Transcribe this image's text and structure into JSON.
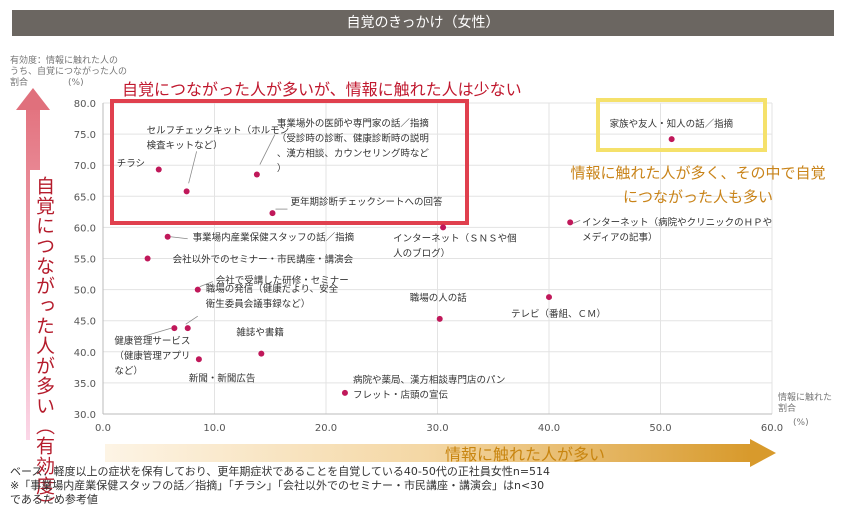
{
  "header": {
    "title": "自覚のきっかけ（女性）"
  },
  "y_caption": "有効度：情報に触れた人の\nうち、自覚につながった人の\n割合",
  "y_unit": "(%)",
  "x_caption": "情報に触れた\n割合",
  "x_unit": "(%)",
  "y_axis_label": "自覚につながった人が多い（有効度）",
  "x_axis_label": "情報に触れた人が多い",
  "headline_red": "自覚につながった人が多いが、情報に触れた人は少ない",
  "callout_orange": "情報に触れた人が多く、その中で自覚につながった人も多い",
  "footnote": [
    "ベース：軽度以上の症状を保有しており、更年期症状であることを自覚している40-50代の正社員女性n=514",
    "※「事業場内産業保健スタッフの話／指摘」「チラシ」「会社以外でのセミナー・市民講座・講演会」はn<30",
    "であるため参考値"
  ],
  "colors": {
    "point": "#c0185a",
    "red_box": "#e0404e",
    "yellow_box": "#f5e16b",
    "gridline": "#e3e3e3"
  },
  "chart_data": {
    "type": "scatter",
    "xlim": [
      0,
      60
    ],
    "ylim": [
      30,
      80
    ],
    "xticks": [
      "0.0",
      "10.0",
      "20.0",
      "30.0",
      "40.0",
      "50.0",
      "60.0"
    ],
    "yticks": [
      "30.0",
      "35.0",
      "40.0",
      "45.0",
      "50.0",
      "55.0",
      "60.0",
      "65.0",
      "70.0",
      "75.0",
      "80.0"
    ],
    "points": [
      {
        "label": "家族や友人・知人の話／指摘",
        "x": 51.0,
        "y": 74.2
      },
      {
        "label": "事業場外の医師や専門家の話／指摘（受診時の診断、健康診断時の説明、漢方相談、カウンセリング時など）",
        "x": 13.8,
        "y": 68.5
      },
      {
        "label": "セルフチェックキット（ホルモン検査キットなど）",
        "x": 7.5,
        "y": 65.8
      },
      {
        "label": "チラシ",
        "x": 5.0,
        "y": 69.3
      },
      {
        "label": "更年期診断チェックシートへの回答",
        "x": 15.2,
        "y": 62.3
      },
      {
        "label": "インターネット（病院やクリニックのＨＰやメディアの記事）",
        "x": 41.9,
        "y": 60.8
      },
      {
        "label": "インターネット（ＳＮＳや個人のブログ）",
        "x": 30.5,
        "y": 60.0
      },
      {
        "label": "事業場内産業保健スタッフの話／指摘",
        "x": 5.8,
        "y": 58.5
      },
      {
        "label": "会社以外でのセミナー・市民講座・講演会",
        "x": 4.0,
        "y": 55.0
      },
      {
        "label": "会社で受講した研修・セミナー",
        "x": 8.5,
        "y": 50.0
      },
      {
        "label": "テレビ（番組、ＣＭ）",
        "x": 40.0,
        "y": 48.8
      },
      {
        "label": "職場の人の話",
        "x": 30.2,
        "y": 45.3
      },
      {
        "label": "職場の発信（健康だより、安全衛生委員会議事録など）",
        "x": 7.6,
        "y": 43.8
      },
      {
        "label": "健康管理サービス（健康管理アプリなど）",
        "x": 6.4,
        "y": 43.8
      },
      {
        "label": "雑誌や書籍",
        "x": 14.2,
        "y": 39.7
      },
      {
        "label": "新聞・新聞広告",
        "x": 8.6,
        "y": 38.8
      },
      {
        "label": "病院や薬局、漢方相談専門店のパンフレット・店頭の宣伝",
        "x": 21.7,
        "y": 33.4
      }
    ]
  }
}
